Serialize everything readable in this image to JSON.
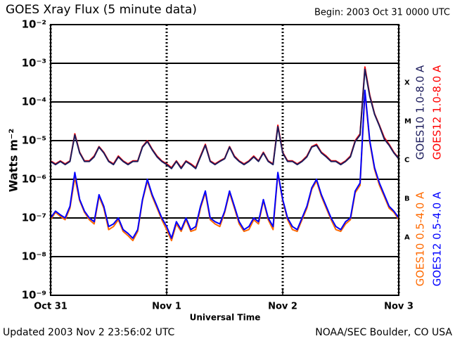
{
  "chart_data": {
    "type": "line",
    "title": "GOES Xray Flux (5 minute data)",
    "subtitle": "Begin:  2003 Oct 31 0000 UTC",
    "y_label": "Watts m⁻²",
    "x_label": "Universal Time",
    "footer_left": "Updated 2003 Nov  2 23:56:02 UTC",
    "footer_right": "NOAA/SEC Boulder, CO USA",
    "log_y": true,
    "grid": true,
    "ylim": [
      1e-09,
      0.01
    ],
    "yticks": [
      {
        "value": 1e-09,
        "label": "10⁻⁹"
      },
      {
        "value": 1e-08,
        "label": "10⁻⁸"
      },
      {
        "value": 1e-07,
        "label": "10⁻⁷"
      },
      {
        "value": 1e-06,
        "label": "10⁻⁶"
      },
      {
        "value": 1e-05,
        "label": "10⁻⁵"
      },
      {
        "value": 0.0001,
        "label": "10⁻⁴"
      },
      {
        "value": 0.001,
        "label": "10⁻³"
      },
      {
        "value": 0.01,
        "label": "10⁻²"
      }
    ],
    "xlim": [
      0,
      72
    ],
    "xticks": [
      {
        "value": 0,
        "label": "Oct 31"
      },
      {
        "value": 24,
        "label": "Nov 1"
      },
      {
        "value": 48,
        "label": "Nov 2"
      },
      {
        "value": 72,
        "label": "Nov 3"
      }
    ],
    "class_labels": [
      {
        "value": 0.0001,
        "label": "X"
      },
      {
        "value": 1e-05,
        "label": "M"
      },
      {
        "value": 1e-06,
        "label": "C"
      },
      {
        "value": 1e-07,
        "label": "B"
      },
      {
        "value": 1e-08,
        "label": "A"
      }
    ],
    "x": [
      0,
      1,
      2,
      3,
      4,
      5,
      6,
      7,
      8,
      9,
      10,
      11,
      12,
      13,
      14,
      15,
      16,
      17,
      18,
      19,
      20,
      21,
      22,
      23,
      24,
      25,
      26,
      27,
      28,
      29,
      30,
      31,
      32,
      33,
      34,
      35,
      36,
      37,
      38,
      39,
      40,
      41,
      42,
      43,
      44,
      45,
      46,
      47,
      48,
      49,
      50,
      51,
      52,
      53,
      54,
      55,
      56,
      57,
      58,
      59,
      60,
      61,
      62,
      63,
      64,
      65,
      66,
      67,
      68,
      69,
      70,
      71,
      72
    ],
    "series": [
      {
        "name": "GOES12 1.0-8.0 A",
        "color": "#ff0000",
        "values": [
          3e-06,
          2.5e-06,
          3e-06,
          2.5e-06,
          3e-06,
          1.5e-05,
          5e-06,
          3e-06,
          3e-06,
          4e-06,
          7e-06,
          5e-06,
          3e-06,
          2.5e-06,
          4e-06,
          3e-06,
          2.5e-06,
          3e-06,
          3e-06,
          7e-06,
          1e-05,
          6e-06,
          4e-06,
          3e-06,
          2.5e-06,
          2e-06,
          3e-06,
          2e-06,
          3e-06,
          2.5e-06,
          2e-06,
          4e-06,
          8e-06,
          3e-06,
          2.5e-06,
          3e-06,
          3.5e-06,
          7e-06,
          4e-06,
          3e-06,
          2.5e-06,
          3e-06,
          4e-06,
          3e-06,
          5e-06,
          3e-06,
          2.5e-06,
          2.5e-05,
          5e-06,
          3e-06,
          3e-06,
          2.5e-06,
          3e-06,
          4e-06,
          7e-06,
          8e-06,
          5e-06,
          4e-06,
          3e-06,
          3e-06,
          2.5e-06,
          3e-06,
          4e-06,
          1e-05,
          1.5e-05,
          0.0008,
          0.00015,
          5e-05,
          2.5e-05,
          1.2e-05,
          8e-06,
          5e-06,
          3.5e-06
        ]
      },
      {
        "name": "GOES10 1.0-8.0 A",
        "color": "#1c1c5c",
        "values": [
          2.9e-06,
          2.4e-06,
          2.9e-06,
          2.4e-06,
          2.9e-06,
          1.4e-05,
          4.8e-06,
          2.9e-06,
          2.9e-06,
          3.8e-06,
          6.8e-06,
          4.8e-06,
          2.9e-06,
          2.4e-06,
          3.8e-06,
          2.9e-06,
          2.4e-06,
          2.9e-06,
          2.9e-06,
          6.8e-06,
          9.5e-06,
          5.8e-06,
          3.8e-06,
          2.9e-06,
          2.4e-06,
          1.9e-06,
          2.9e-06,
          1.9e-06,
          2.9e-06,
          2.4e-06,
          1.9e-06,
          3.8e-06,
          7.6e-06,
          2.9e-06,
          2.4e-06,
          2.9e-06,
          3.4e-06,
          6.8e-06,
          3.8e-06,
          2.9e-06,
          2.4e-06,
          2.9e-06,
          3.8e-06,
          2.9e-06,
          4.8e-06,
          2.9e-06,
          2.4e-06,
          2.3e-05,
          4.8e-06,
          2.9e-06,
          2.9e-06,
          2.4e-06,
          2.9e-06,
          3.8e-06,
          6.8e-06,
          7.6e-06,
          4.8e-06,
          3.8e-06,
          2.9e-06,
          2.9e-06,
          2.4e-06,
          2.9e-06,
          3.8e-06,
          9.5e-06,
          1.4e-05,
          0.0007,
          0.00014,
          4.8e-05,
          2.4e-05,
          1.1e-05,
          7.6e-06,
          4.8e-06,
          3.4e-06
        ]
      },
      {
        "name": "GOES10 0.5-4.0 A",
        "color": "#ff6a00",
        "values": [
          9e-08,
          1.4e-07,
          1.1e-07,
          9e-08,
          1.8e-07,
          1.1e-06,
          2.8e-07,
          1.4e-07,
          9e-08,
          7e-08,
          3.6e-07,
          1.8e-07,
          5e-08,
          6e-08,
          9e-08,
          4.5e-08,
          3.5e-08,
          2.6e-08,
          4.5e-08,
          2.8e-07,
          9e-07,
          3.6e-07,
          1.8e-07,
          9e-08,
          5e-08,
          2.6e-08,
          7e-08,
          4.5e-08,
          9e-08,
          4.5e-08,
          5e-08,
          1.8e-07,
          4.5e-07,
          9e-08,
          7e-08,
          6e-08,
          1.4e-07,
          4.5e-07,
          1.8e-07,
          7e-08,
          4.5e-08,
          5e-08,
          9e-08,
          7e-08,
          2.8e-07,
          9e-08,
          5e-08,
          1.4e-06,
          2.8e-07,
          9e-08,
          5e-08,
          4.5e-08,
          9e-08,
          1.8e-07,
          5.5e-07,
          9e-07,
          3.6e-07,
          1.8e-07,
          9e-08,
          5e-08,
          4.5e-08,
          7e-08,
          9e-08,
          4.5e-07,
          7e-07,
          0.00018,
          9e-06,
          1.8e-06,
          7e-07,
          3.6e-07,
          1.8e-07,
          1.4e-07,
          9e-08
        ]
      },
      {
        "name": "GOES12 0.5-4.0 A",
        "color": "#0000ff",
        "values": [
          1e-07,
          1.5e-07,
          1.2e-07,
          1e-07,
          2e-07,
          1.5e-06,
          3e-07,
          1.5e-07,
          1e-07,
          8e-08,
          4e-07,
          2e-07,
          6e-08,
          7e-08,
          1e-07,
          5e-08,
          4e-08,
          3e-08,
          5e-08,
          3e-07,
          1e-06,
          4e-07,
          2e-07,
          1e-07,
          6e-08,
          3e-08,
          8e-08,
          5e-08,
          1e-07,
          5e-08,
          6e-08,
          2e-07,
          5e-07,
          1e-07,
          8e-08,
          7e-08,
          1.5e-07,
          5e-07,
          2e-07,
          8e-08,
          5e-08,
          6e-08,
          1e-07,
          8e-08,
          3e-07,
          1e-07,
          6e-08,
          1.5e-06,
          3e-07,
          1e-07,
          6e-08,
          5e-08,
          1e-07,
          2e-07,
          6e-07,
          1e-06,
          4e-07,
          2e-07,
          1e-07,
          6e-08,
          5e-08,
          8e-08,
          1e-07,
          5e-07,
          8e-07,
          0.0002,
          1e-05,
          2e-06,
          8e-07,
          4e-07,
          2e-07,
          1.5e-07,
          1e-07
        ]
      }
    ]
  }
}
